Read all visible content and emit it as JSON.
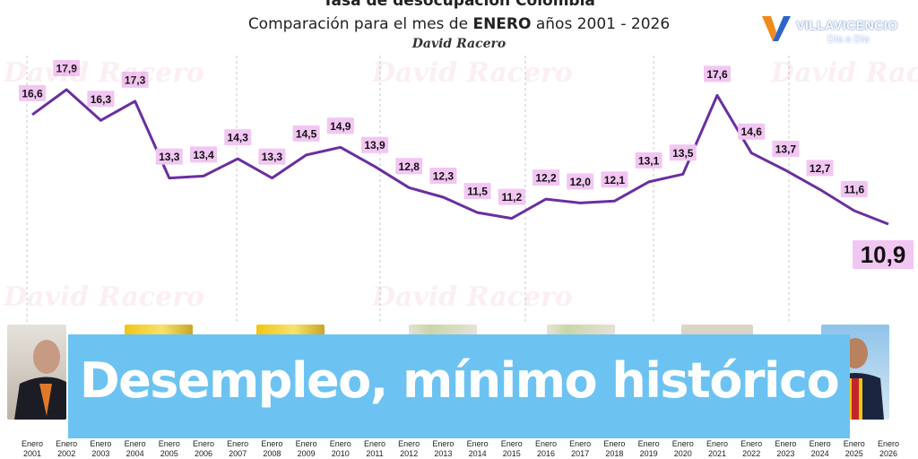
{
  "chart_data": {
    "type": "line",
    "title": "Tasa de desocupación Colombia",
    "subtitle_prefix": "Comparación para el mes de ",
    "subtitle_bold": "ENERO",
    "subtitle_suffix": " años 2001 - 2026",
    "x_tick_line1": "Enero",
    "x": [
      "2001",
      "2002",
      "2003",
      "2004",
      "2005",
      "2006",
      "2007",
      "2008",
      "2009",
      "2010",
      "2011",
      "2012",
      "2013",
      "2014",
      "2015",
      "2016",
      "2017",
      "2018",
      "2019",
      "2020",
      "2021",
      "2022",
      "2023",
      "2024",
      "2025",
      "2026"
    ],
    "values": [
      16.6,
      17.9,
      16.3,
      17.3,
      13.3,
      13.4,
      14.3,
      13.3,
      14.5,
      14.9,
      13.9,
      12.8,
      12.3,
      11.5,
      11.2,
      12.2,
      12.0,
      12.1,
      13.1,
      13.5,
      17.6,
      14.6,
      13.7,
      12.7,
      11.6,
      10.9
    ],
    "labels": [
      "16,6",
      "17,9",
      "16,3",
      "17,3",
      "13,3",
      "13,4",
      "14,3",
      "13,3",
      "14,5",
      "14,9",
      "13,9",
      "12,8",
      "12,3",
      "11,5",
      "11,2",
      "12,2",
      "12,0",
      "12,1",
      "13,1",
      "13,5",
      "17,6",
      "14,6",
      "13,7",
      "12,7",
      "11,6",
      "10,9"
    ],
    "highlight_index": 25,
    "line_color": "#6a2fa0",
    "label_bg": "#f2c6f2",
    "grid": true
  },
  "signature": "David Racero",
  "watermark_text": "David Racero",
  "logo": {
    "name": "VILLAVICENCIO",
    "tagline": "Día a Día"
  },
  "headline": "Desempleo, mínimo histórico",
  "colors": {
    "headline_bg": "#6cc3f2",
    "headline_text": "#ffffff"
  }
}
